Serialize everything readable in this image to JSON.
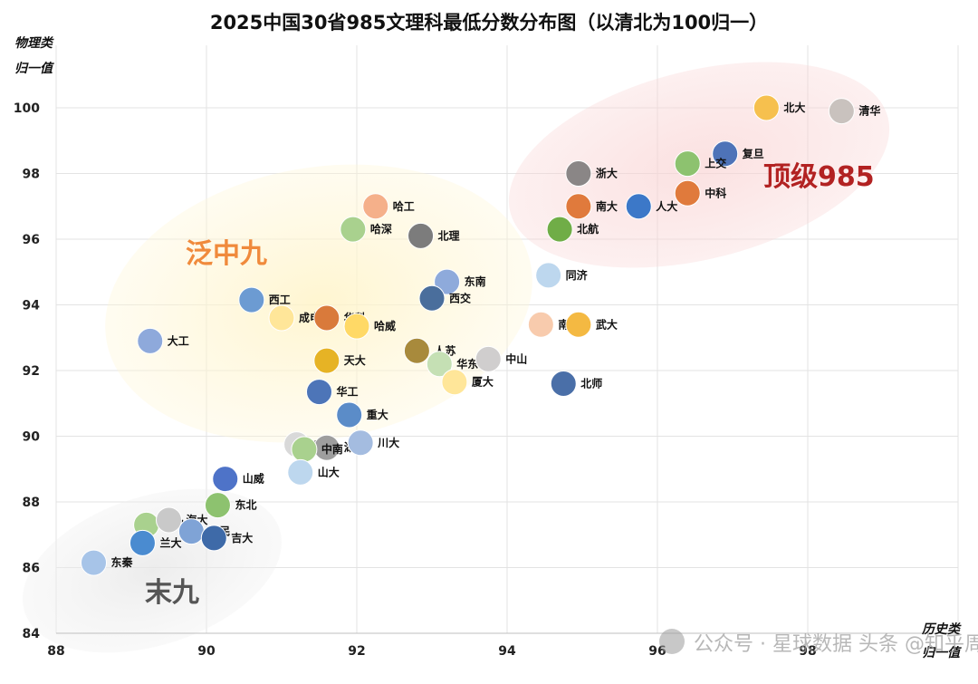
{
  "chart_data": {
    "type": "scatter",
    "title": "2025中国30省985文理科最低分数分布图（以清北为100归一）",
    "ylabel_line1": "物理类",
    "ylabel_line2": "归一值",
    "xlabel_line1": "历史类",
    "xlabel_line2": "归一值",
    "xlim": [
      88,
      100
    ],
    "ylim": [
      84,
      100.8
    ],
    "x_ticks": [
      "88",
      "90",
      "92",
      "94",
      "96",
      "98"
    ],
    "y_ticks": [
      "84",
      "86",
      "88",
      "90",
      "92",
      "94",
      "96",
      "98",
      "100"
    ],
    "grid": true,
    "group_labels": [
      {
        "name": "顶级985",
        "color": "#B22222"
      },
      {
        "name": "泛中九",
        "color": "#F08A3C"
      },
      {
        "name": "末九",
        "color": "#555555"
      }
    ],
    "watermark": "公众号 · 星球数据  头条 @知乎周瑞聊大学",
    "points": [
      {
        "label": "北大",
        "x": 97.45,
        "y": 100.0,
        "color": "#F6C04E"
      },
      {
        "label": "清华",
        "x": 98.45,
        "y": 99.9,
        "color": "#C9C2BE"
      },
      {
        "label": "复旦",
        "x": 96.9,
        "y": 98.6,
        "color": "#4E73B8"
      },
      {
        "label": "上交",
        "x": 96.4,
        "y": 98.3,
        "color": "#8DC26F"
      },
      {
        "label": "浙大",
        "x": 94.95,
        "y": 98.0,
        "color": "#8A8686"
      },
      {
        "label": "中科",
        "x": 96.4,
        "y": 97.4,
        "color": "#E07A3C"
      },
      {
        "label": "南大",
        "x": 94.95,
        "y": 97.0,
        "color": "#E07A3C"
      },
      {
        "label": "人大",
        "x": 95.75,
        "y": 97.0,
        "color": "#3C78C8"
      },
      {
        "label": "哈工",
        "x": 92.25,
        "y": 97.0,
        "color": "#F5B08A"
      },
      {
        "label": "哈深",
        "x": 91.95,
        "y": 96.3,
        "color": "#A9D18E"
      },
      {
        "label": "北理",
        "x": 92.85,
        "y": 96.1,
        "color": "#7C7C7C"
      },
      {
        "label": "北航",
        "x": 94.7,
        "y": 96.3,
        "color": "#70AD47"
      },
      {
        "label": "东南",
        "x": 93.2,
        "y": 94.7,
        "color": "#8EAADB"
      },
      {
        "label": "同济",
        "x": 94.55,
        "y": 94.9,
        "color": "#BDD7EE"
      },
      {
        "label": "西交",
        "x": 93.0,
        "y": 94.2,
        "color": "#4A6E9C"
      },
      {
        "label": "西工",
        "x": 90.6,
        "y": 94.15,
        "color": "#6C9BD2"
      },
      {
        "label": "成电",
        "x": 91.0,
        "y": 93.6,
        "color": "#FFE699"
      },
      {
        "label": "华科",
        "x": 91.6,
        "y": 93.6,
        "color": "#D97A3B"
      },
      {
        "label": "哈威",
        "x": 92.0,
        "y": 93.35,
        "color": "#FFD966"
      },
      {
        "label": "南开",
        "x": 94.45,
        "y": 93.4,
        "color": "#F8CBAD"
      },
      {
        "label": "武大",
        "x": 94.95,
        "y": 93.4,
        "color": "#F4B942"
      },
      {
        "label": "大工",
        "x": 89.25,
        "y": 92.9,
        "color": "#8EA9DB"
      },
      {
        "label": "人苏",
        "x": 92.8,
        "y": 92.6,
        "color": "#A88A3C"
      },
      {
        "label": "华东师",
        "x": 93.1,
        "y": 92.2,
        "color": "#C5E0B4"
      },
      {
        "label": "中山",
        "x": 93.75,
        "y": 92.35,
        "color": "#D0CECE"
      },
      {
        "label": "天大",
        "x": 91.6,
        "y": 92.3,
        "color": "#E6B325"
      },
      {
        "label": "厦大",
        "x": 93.3,
        "y": 91.65,
        "color": "#FFE699"
      },
      {
        "label": "北师",
        "x": 94.75,
        "y": 91.6,
        "color": "#4A6FA8"
      },
      {
        "label": "华工",
        "x": 91.5,
        "y": 91.35,
        "color": "#4D75B8"
      },
      {
        "label": "重大",
        "x": 91.9,
        "y": 90.65,
        "color": "#5B8CC8"
      },
      {
        "label": "中农",
        "x": 91.2,
        "y": 89.75,
        "color": "#D9D9D9"
      },
      {
        "label": "湖大",
        "x": 91.6,
        "y": 89.65,
        "color": "#9E9E9E"
      },
      {
        "label": "川大",
        "x": 92.05,
        "y": 89.8,
        "color": "#A4BCE0"
      },
      {
        "label": "中南",
        "x": 91.3,
        "y": 89.6,
        "color": "#A9D18E"
      },
      {
        "label": "山威",
        "x": 90.25,
        "y": 88.7,
        "color": "#4E73C8"
      },
      {
        "label": "山大",
        "x": 91.25,
        "y": 88.9,
        "color": "#BDD7EE"
      },
      {
        "label": "东北",
        "x": 90.15,
        "y": 87.9,
        "color": "#8DC26F"
      },
      {
        "label": "厦马",
        "x": 89.2,
        "y": 87.3,
        "color": "#A9D18E"
      },
      {
        "label": "海大",
        "x": 89.5,
        "y": 87.45,
        "color": "#C9C9C9"
      },
      {
        "label": "央民",
        "x": 89.8,
        "y": 87.1,
        "color": "#7FA3D6"
      },
      {
        "label": "兰大",
        "x": 89.15,
        "y": 86.75,
        "color": "#4A8BD0"
      },
      {
        "label": "吉大",
        "x": 90.1,
        "y": 86.9,
        "color": "#3E6AA8"
      },
      {
        "label": "东秦",
        "x": 88.5,
        "y": 86.15,
        "color": "#A7C4E8"
      }
    ]
  }
}
